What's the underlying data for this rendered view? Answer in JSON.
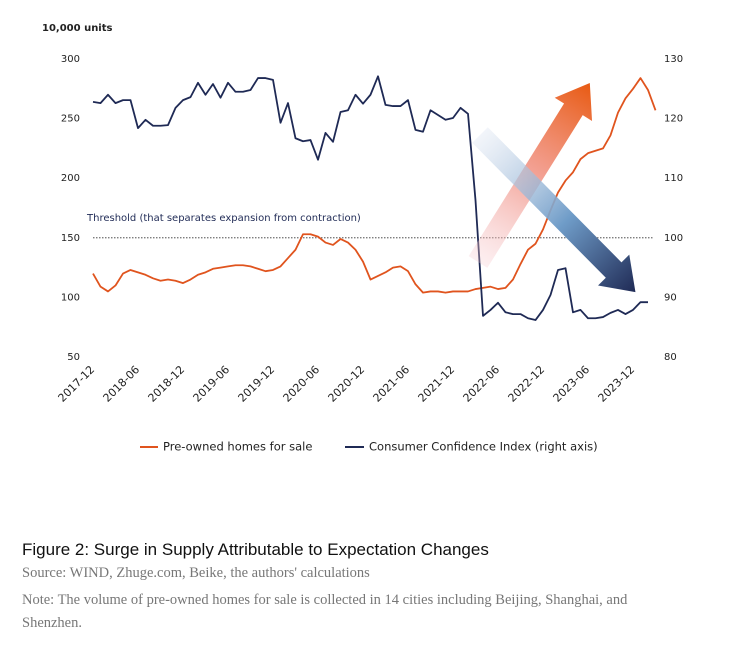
{
  "chart_data": {
    "type": "line",
    "y_unit_label": "10,000 units",
    "threshold": 150,
    "threshold_label": "Threshold (that separates expansion from contraction)",
    "categories": [
      "2017-12",
      null,
      null,
      null,
      null,
      null,
      "2018-06",
      null,
      null,
      null,
      null,
      null,
      "2018-12",
      null,
      null,
      null,
      null,
      null,
      "2019-06",
      null,
      null,
      null,
      null,
      null,
      "2019-12",
      null,
      null,
      null,
      null,
      null,
      "2020-06",
      null,
      null,
      null,
      null,
      null,
      "2020-12",
      null,
      null,
      null,
      null,
      null,
      "2021-06",
      null,
      null,
      null,
      null,
      null,
      "2021-12",
      null,
      null,
      null,
      null,
      null,
      "2022-06",
      null,
      null,
      null,
      null,
      null,
      "2022-12",
      null,
      null,
      null,
      null,
      null,
      "2023-06",
      null,
      null,
      null,
      null,
      null,
      "2023-12",
      null,
      null,
      null
    ],
    "series": [
      {
        "name": "Pre-owned homes for sale",
        "color": "#e0541e",
        "values": [
          120,
          109,
          105,
          110,
          120,
          123,
          121,
          119,
          116,
          114,
          115,
          114,
          112,
          115,
          119,
          121,
          124,
          125,
          126,
          127,
          127,
          126,
          124,
          122,
          123,
          126,
          133,
          140,
          153,
          153,
          151,
          146,
          144,
          149,
          146,
          140,
          130,
          115,
          118,
          121,
          125,
          126,
          122,
          111,
          104,
          105,
          105,
          104,
          105,
          105,
          105,
          107,
          108,
          109,
          107,
          108,
          115,
          128,
          140,
          145,
          157,
          173,
          188,
          198,
          205,
          216,
          221,
          223,
          225,
          236,
          255,
          267,
          275,
          284,
          274,
          257
        ]
      },
      {
        "name": "Consumer Confidence Index (right axis)",
        "color": "#1f2a55",
        "axis": "y2",
        "values": [
          122.8,
          122.6,
          124,
          122.6,
          123.1,
          123.1,
          118.4,
          119.8,
          118.8,
          118.8,
          118.9,
          121.8,
          123.1,
          123.6,
          126,
          124,
          125.8,
          123.5,
          126,
          124.5,
          124.5,
          124.8,
          126.8,
          126.8,
          126.5,
          119.3,
          122.6,
          116.7,
          116.2,
          116.4,
          113.1,
          117.6,
          116.1,
          121.1,
          121.4,
          124,
          122.5,
          124,
          127.1,
          122.3,
          122.1,
          122.1,
          123.1,
          118.1,
          117.8,
          121.4,
          120.6,
          119.8,
          120.1,
          121.8,
          120.8,
          106.3,
          86.9,
          87.9,
          89.1,
          87.5,
          87.2,
          87.2,
          86.5,
          86.2,
          87.9,
          90.4,
          94.6,
          94.9,
          87.5,
          87.9,
          86.5,
          86.5,
          86.7,
          87.4,
          87.9,
          87.2,
          87.9,
          89.2,
          89.2,
          null
        ]
      }
    ],
    "ylim": [
      50,
      300
    ],
    "yticks": [
      50,
      100,
      150,
      200,
      250,
      300
    ],
    "y2lim": [
      80,
      130
    ],
    "y2ticks": [
      80,
      90,
      100,
      110,
      120,
      130
    ],
    "grid": false
  },
  "caption": {
    "title": "Figure 2: Surge in Supply Attributable to Expectation Changes",
    "source": "Source: WIND, Zhuge.com, Beike, the authors' calculations",
    "note": "Note: The volume of pre-owned homes for sale is collected in 14 cities including Beijing, Shanghai, and Shenzhen."
  }
}
